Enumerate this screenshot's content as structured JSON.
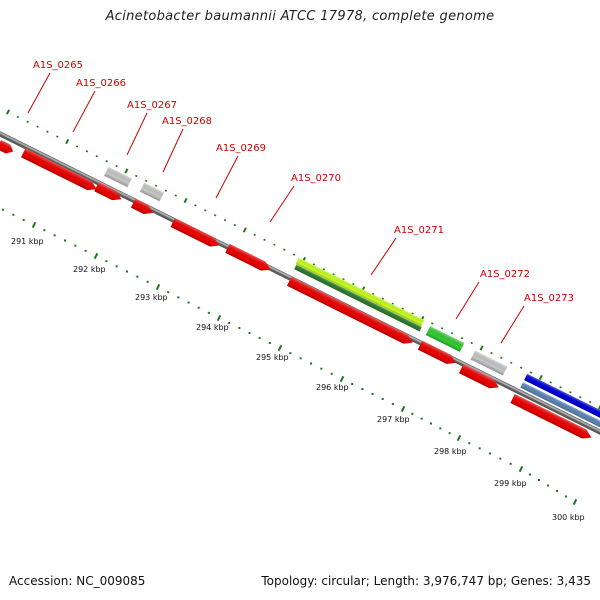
{
  "title": "Acinetobacter baumannii ATCC 17978, complete genome",
  "footer": {
    "accession": "Accession: NC_009085",
    "summary": "Topology: circular; Length: 3,976,747 bp; Genes: 3,435"
  },
  "colors": {
    "backbone": "#8a8a8a",
    "tick": "#1a7a1a",
    "label": "#cc0000",
    "cds": "#ee0000",
    "gray": "#c8c8c8",
    "lime": "#c8ff1e",
    "darkgreen": "#2e7d2e",
    "green": "#33cc33",
    "blue": "#0000dd",
    "steelblue": "#5b86b8"
  },
  "gene_labels": [
    "A1S_0265",
    "A1S_0266",
    "A1S_0267",
    "A1S_0268",
    "A1S_0269",
    "A1S_0270",
    "A1S_0271",
    "A1S_0272",
    "A1S_0273"
  ],
  "scale_labels": [
    "291 kbp",
    "292 kbp",
    "293 kbp",
    "294 kbp",
    "295 kbp",
    "296 kbp",
    "297 kbp",
    "298 kbp",
    "299 kbp",
    "300 kbp"
  ]
}
